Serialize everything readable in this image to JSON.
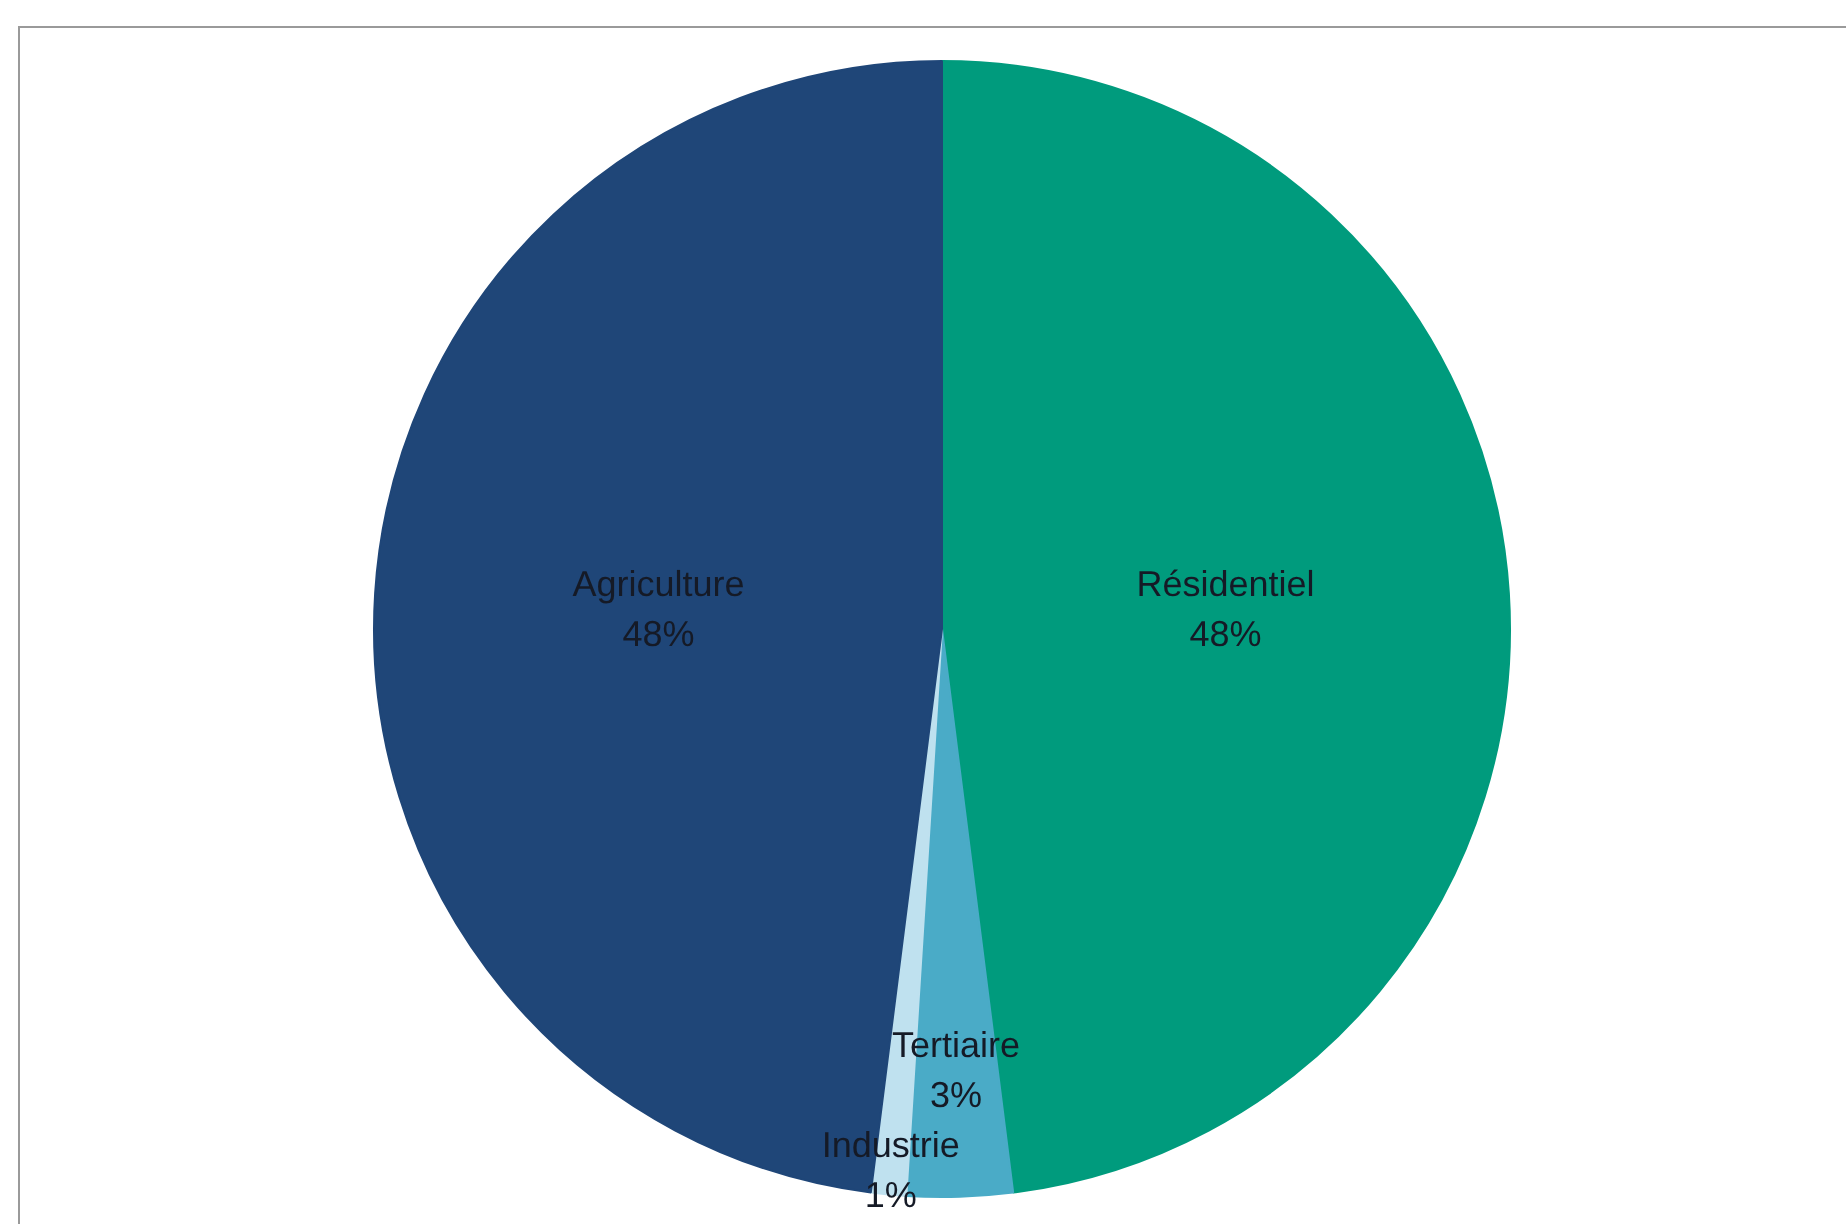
{
  "chart_data": {
    "type": "pie",
    "categories": [
      "Résidentiel",
      "Tertiaire",
      "Industrie",
      "Agriculture"
    ],
    "values": [
      48,
      3,
      1,
      48
    ],
    "colors": [
      "#009b7d",
      "#4aabc7",
      "#bfe1ef",
      "#1f4678"
    ],
    "value_labels": [
      "48%",
      "3%",
      "1%",
      "48%"
    ]
  }
}
